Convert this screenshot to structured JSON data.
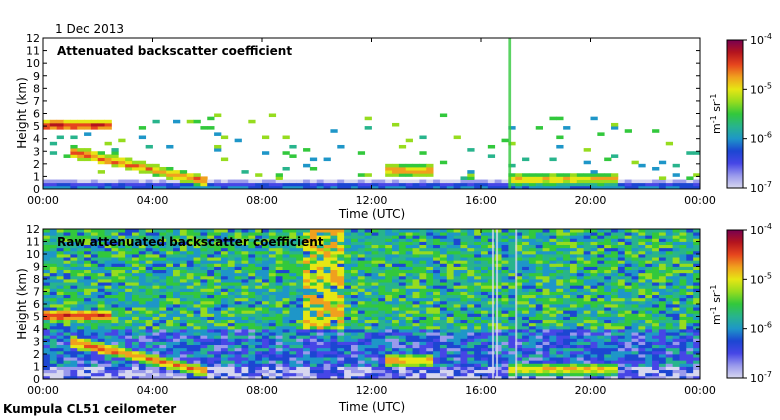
{
  "date": "1 Dec 2013",
  "footer": "Kumpula CL51 ceilometer",
  "colors": {
    "cmap": [
      "#d7d7ef",
      "#9a9aec",
      "#4646e6",
      "#1c46d2",
      "#1e96c8",
      "#28b48c",
      "#32c83c",
      "#96dc1e",
      "#e6e614",
      "#f0a01e",
      "#e6461e",
      "#b4141e",
      "#780050"
    ]
  },
  "chart_data": [
    {
      "type": "heatmap",
      "title": "Attenuated backscatter coefficient",
      "xlabel": "Time (UTC)",
      "ylabel": "Height (km)",
      "xlim": [
        0,
        24
      ],
      "ylim": [
        0,
        12
      ],
      "x_ticks": [
        "00:00",
        "04:00",
        "08:00",
        "12:00",
        "16:00",
        "20:00",
        "00:00"
      ],
      "y_ticks": [
        "0",
        "1",
        "2",
        "3",
        "4",
        "5",
        "6",
        "7",
        "8",
        "9",
        "10",
        "11",
        "12"
      ],
      "colorbar": {
        "ticks": [
          "10",
          "10",
          "10",
          "10"
        ],
        "exponents": [
          "-4",
          "-5",
          "-6",
          "-7"
        ],
        "unit_base": [
          "m",
          "sr"
        ],
        "unit_exp": [
          "-1",
          "-1"
        ],
        "scale": "log",
        "range": [
          1e-07,
          0.0001
        ]
      },
      "features": [
        {
          "name": "layer-cloud-0430",
          "t_start": 0.0,
          "t_end": 2.5,
          "h": 5.1,
          "level": 11
        },
        {
          "name": "descending-cloud",
          "t_start": 1.0,
          "t_end": 6.0,
          "h_start": 3.0,
          "h_end": 0.6,
          "level": 10
        },
        {
          "name": "boundary-layer",
          "t_start": 0.0,
          "t_end": 24.0,
          "h": 0.2,
          "level": 4
        },
        {
          "name": "cloud-1230",
          "t_start": 12.5,
          "t_end": 14.3,
          "h": 1.5,
          "level": 10
        },
        {
          "name": "streak-1700",
          "t_start": 17.0,
          "t_end": 17.1,
          "h": 12.0,
          "level": 6
        },
        {
          "name": "low-cloud-late",
          "t_start": 17.0,
          "t_end": 21.0,
          "h": 0.8,
          "level": 9
        }
      ]
    },
    {
      "type": "heatmap",
      "title": "Raw attenuated backscatter coefficient",
      "xlabel": "Time (UTC)",
      "ylabel": "Height (km)",
      "xlim": [
        0,
        24
      ],
      "ylim": [
        0,
        12
      ],
      "x_ticks": [
        "00:00",
        "04:00",
        "08:00",
        "12:00",
        "16:00",
        "20:00",
        "00:00"
      ],
      "y_ticks": [
        "0",
        "1",
        "2",
        "3",
        "4",
        "5",
        "6",
        "7",
        "8",
        "9",
        "10",
        "11",
        "12"
      ],
      "colorbar": {
        "ticks": [
          "10",
          "10",
          "10",
          "10"
        ],
        "exponents": [
          "-4",
          "-5",
          "-6",
          "-7"
        ],
        "unit_base": [
          "m",
          "sr"
        ],
        "unit_exp": [
          "-1",
          "-1"
        ],
        "scale": "log",
        "range": [
          1e-07,
          0.0001
        ]
      },
      "features": [
        {
          "name": "layer-cloud-0430",
          "t_start": 0.0,
          "t_end": 2.5,
          "h": 5.1,
          "level": 11
        },
        {
          "name": "descending-cloud",
          "t_start": 1.0,
          "t_end": 6.0,
          "h_start": 3.0,
          "h_end": 0.6,
          "level": 10
        },
        {
          "name": "noise-background",
          "t_start": 0.0,
          "t_end": 24.0,
          "h": 12.0,
          "level": 5
        },
        {
          "name": "cloud-1230",
          "t_start": 12.5,
          "t_end": 14.3,
          "h": 1.5,
          "level": 10
        },
        {
          "name": "low-cloud-late",
          "t_start": 17.0,
          "t_end": 21.0,
          "h": 0.8,
          "level": 9
        }
      ]
    }
  ]
}
